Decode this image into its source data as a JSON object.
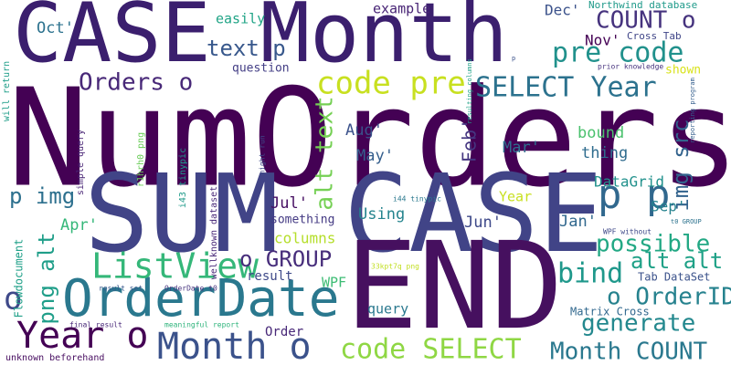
{
  "words": [
    {
      "text": "NumOrders",
      "color": "#440154"
    },
    {
      "text": "CASE Month",
      "color": "#3b1f6e"
    },
    {
      "text": "SUM CASE",
      "color": "#414487"
    },
    {
      "text": "END",
      "color": "#46105f"
    },
    {
      "text": "OrderDate",
      "color": "#2a788e"
    },
    {
      "text": "ListView",
      "color": "#35b779"
    },
    {
      "text": "Month o",
      "color": "#3b528b"
    },
    {
      "text": "Year o",
      "color": "#440154"
    },
    {
      "text": "p p",
      "color": "#31688e"
    },
    {
      "text": "code pre",
      "color": "#c8e020"
    },
    {
      "text": "SELECT Year",
      "color": "#2c728e"
    },
    {
      "text": "pre code",
      "color": "#21918c"
    },
    {
      "text": "COUNT o",
      "color": "#46337e"
    },
    {
      "text": "code SELECT",
      "color": "#8fd744"
    },
    {
      "text": "Month COUNT",
      "color": "#2a788e"
    },
    {
      "text": "generate",
      "color": "#23888e"
    },
    {
      "text": "o OrderID",
      "color": "#26828e"
    },
    {
      "text": "bind",
      "color": "#1f988b"
    },
    {
      "text": "possible",
      "color": "#22a884"
    },
    {
      "text": "alt alt",
      "color": "#1fa187"
    },
    {
      "text": "o GROUP",
      "color": "#472d7b"
    },
    {
      "text": "Orders o",
      "color": "#482878"
    },
    {
      "text": "text p",
      "color": "#38588c"
    },
    {
      "text": "alt text",
      "color": "#75d054"
    },
    {
      "text": "img src",
      "color": "#33638d"
    },
    {
      "text": "p img",
      "color": "#2d708e"
    },
    {
      "text": "png alt",
      "color": "#1f9e89"
    },
    {
      "text": "o",
      "color": "#3e4989"
    },
    {
      "text": "Feb'",
      "color": "#453781"
    },
    {
      "text": "Aug'",
      "color": "#3b528b"
    },
    {
      "text": "May'",
      "color": "#355f8d"
    },
    {
      "text": "Mar'",
      "color": "#2e6e8e"
    },
    {
      "text": "Jul'",
      "color": "#471063"
    },
    {
      "text": "Jun'",
      "color": "#3e4989"
    },
    {
      "text": "Jan'",
      "color": "#31688e"
    },
    {
      "text": "Apr'",
      "color": "#35b779"
    },
    {
      "text": "Oct'",
      "color": "#2c728e"
    },
    {
      "text": "Nov'",
      "color": "#440154"
    },
    {
      "text": "Dec'",
      "color": "#3b528b"
    },
    {
      "text": "Sep'",
      "color": "#26828e"
    },
    {
      "text": "columns",
      "color": "#b5de2b"
    },
    {
      "text": "Using",
      "color": "#25848e"
    },
    {
      "text": "DataGrid",
      "color": "#21918c"
    },
    {
      "text": "thing",
      "color": "#2f6c8e"
    },
    {
      "text": "bound",
      "color": "#4ac16d"
    },
    {
      "text": "example",
      "color": "#482475"
    },
    {
      "text": "easily",
      "color": "#20a486"
    },
    {
      "text": "question",
      "color": "#433e85"
    },
    {
      "text": "something",
      "color": "#443a83"
    },
    {
      "text": "Year",
      "color": "#c8e020"
    },
    {
      "text": "result",
      "color": "#3e4989"
    },
    {
      "text": "WPF",
      "color": "#3dbc74"
    },
    {
      "text": "query",
      "color": "#2a788e"
    },
    {
      "text": "Order",
      "color": "#482878"
    },
    {
      "text": "Flowdocument",
      "color": "#1fa088"
    },
    {
      "text": "shown",
      "color": "#d8e219"
    },
    {
      "text": "Northwind database",
      "color": "#1f9a8a"
    },
    {
      "text": "Cross Tab",
      "color": "#404688"
    },
    {
      "text": "prior knowledge",
      "color": "#46327e"
    },
    {
      "text": "Tab DataSet",
      "color": "#3b528b"
    },
    {
      "text": "Matrix Cross",
      "color": "#31688e"
    },
    {
      "text": "will return",
      "color": "#1f9e89"
    },
    {
      "text": "simple query",
      "color": "#482475"
    },
    {
      "text": "r1hrh0 png",
      "color": "#6ccd5a"
    },
    {
      "text": "i43 tinypic",
      "color": "#1f9a8a"
    },
    {
      "text": "wellknown dataset",
      "color": "#482878"
    },
    {
      "text": "might run",
      "color": "#3e4989"
    },
    {
      "text": "i44 tinypic",
      "color": "#2a788e"
    },
    {
      "text": "WPF without",
      "color": "#3e4989"
    },
    {
      "text": "t0 GROUP",
      "color": "#2c728e"
    },
    {
      "text": "33kpt7q png",
      "color": "#c2df23"
    },
    {
      "text": "result set",
      "color": "#38588c"
    },
    {
      "text": "OrderDate t0",
      "color": "#46337e"
    },
    {
      "text": "final result",
      "color": "#482878"
    },
    {
      "text": "meaningful report",
      "color": "#2fb47c"
    },
    {
      "text": "unknown beforehand",
      "color": "#470d60"
    },
    {
      "text": "resulting columns",
      "color": "#1fa187"
    },
    {
      "text": "reporting program",
      "color": "#355f8d"
    },
    {
      "text": "p",
      "color": "#3b528b"
    }
  ]
}
